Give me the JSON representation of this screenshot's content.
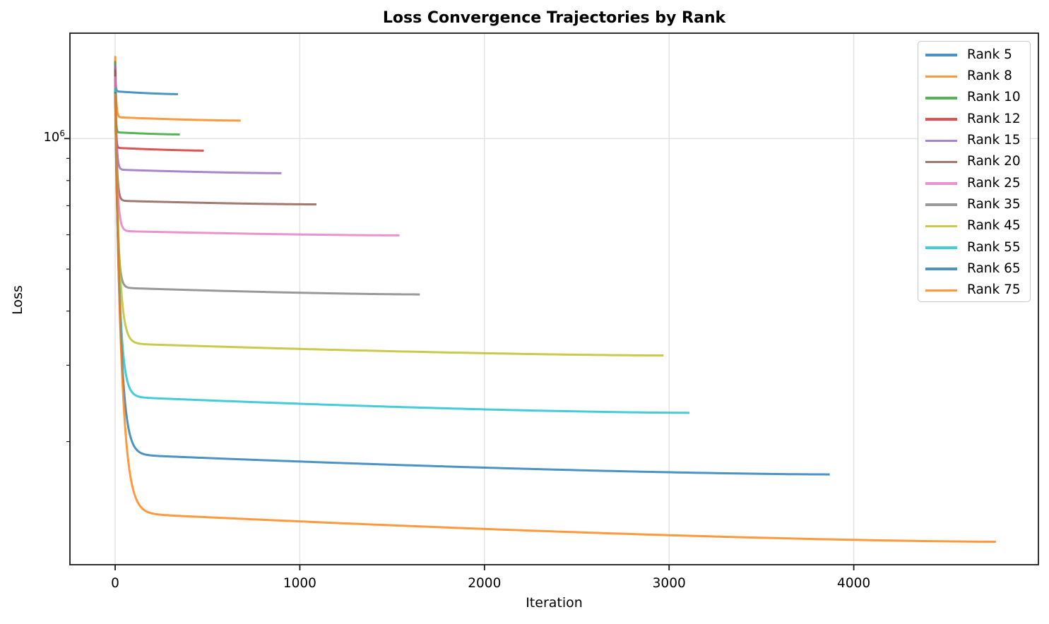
{
  "chart_data": {
    "type": "line",
    "title": "Loss Convergence Trajectories by Rank",
    "xlabel": "Iteration",
    "ylabel": "Loss",
    "y_scale": "log",
    "grid": true,
    "legend_position": "upper right",
    "xlim": [
      -245,
      5000
    ],
    "ylim": [
      104000,
      1750000
    ],
    "x_ticks": [
      0,
      1000,
      2000,
      3000,
      4000
    ],
    "y_major_tick": {
      "value": 1000000,
      "base": "10",
      "exp": "6"
    },
    "y_minor_ticks": [
      900000,
      800000,
      700000,
      600000,
      500000,
      400000,
      300000,
      200000
    ],
    "line_alpha": 0.8,
    "series": [
      {
        "name": "Rank 5",
        "color": "#1f77b4",
        "initial_loss": 1420000,
        "post_drop_loss": 1285000,
        "final_loss": 1266000,
        "final_iteration": 340
      },
      {
        "name": "Rank 8",
        "color": "#ff7f0e",
        "initial_loss": 1550000,
        "post_drop_loss": 1120000,
        "final_loss": 1100000,
        "final_iteration": 680
      },
      {
        "name": "Rank 10",
        "color": "#2ca02c",
        "initial_loss": 1510000,
        "post_drop_loss": 1034000,
        "final_loss": 1022000,
        "final_iteration": 350
      },
      {
        "name": "Rank 12",
        "color": "#d62728",
        "initial_loss": 1450000,
        "post_drop_loss": 952000,
        "final_loss": 938000,
        "final_iteration": 480
      },
      {
        "name": "Rank 15",
        "color": "#9467bd",
        "initial_loss": 1480000,
        "post_drop_loss": 848000,
        "final_loss": 832000,
        "final_iteration": 900
      },
      {
        "name": "Rank 20",
        "color": "#8c564b",
        "initial_loss": 1440000,
        "post_drop_loss": 719000,
        "final_loss": 705000,
        "final_iteration": 1090
      },
      {
        "name": "Rank 25",
        "color": "#e377c2",
        "initial_loss": 1390000,
        "post_drop_loss": 612000,
        "final_loss": 598000,
        "final_iteration": 1540
      },
      {
        "name": "Rank 35",
        "color": "#7f7f7f",
        "initial_loss": 1300000,
        "post_drop_loss": 453000,
        "final_loss": 437000,
        "final_iteration": 1650
      },
      {
        "name": "Rank 45",
        "color": "#bcbd22",
        "initial_loss": 1290000,
        "post_drop_loss": 337000,
        "final_loss": 316000,
        "final_iteration": 2970
      },
      {
        "name": "Rank 55",
        "color": "#17becf",
        "initial_loss": 1310000,
        "post_drop_loss": 254000,
        "final_loss": 233000,
        "final_iteration": 3110
      },
      {
        "name": "Rank 65",
        "color": "#1f77b4",
        "initial_loss": 1280000,
        "post_drop_loss": 187000,
        "final_loss": 168000,
        "final_iteration": 3870
      },
      {
        "name": "Rank 75",
        "color": "#ff7f0e",
        "initial_loss": 1270000,
        "post_drop_loss": 137000,
        "final_loss": 117500,
        "final_iteration": 4770
      }
    ]
  }
}
